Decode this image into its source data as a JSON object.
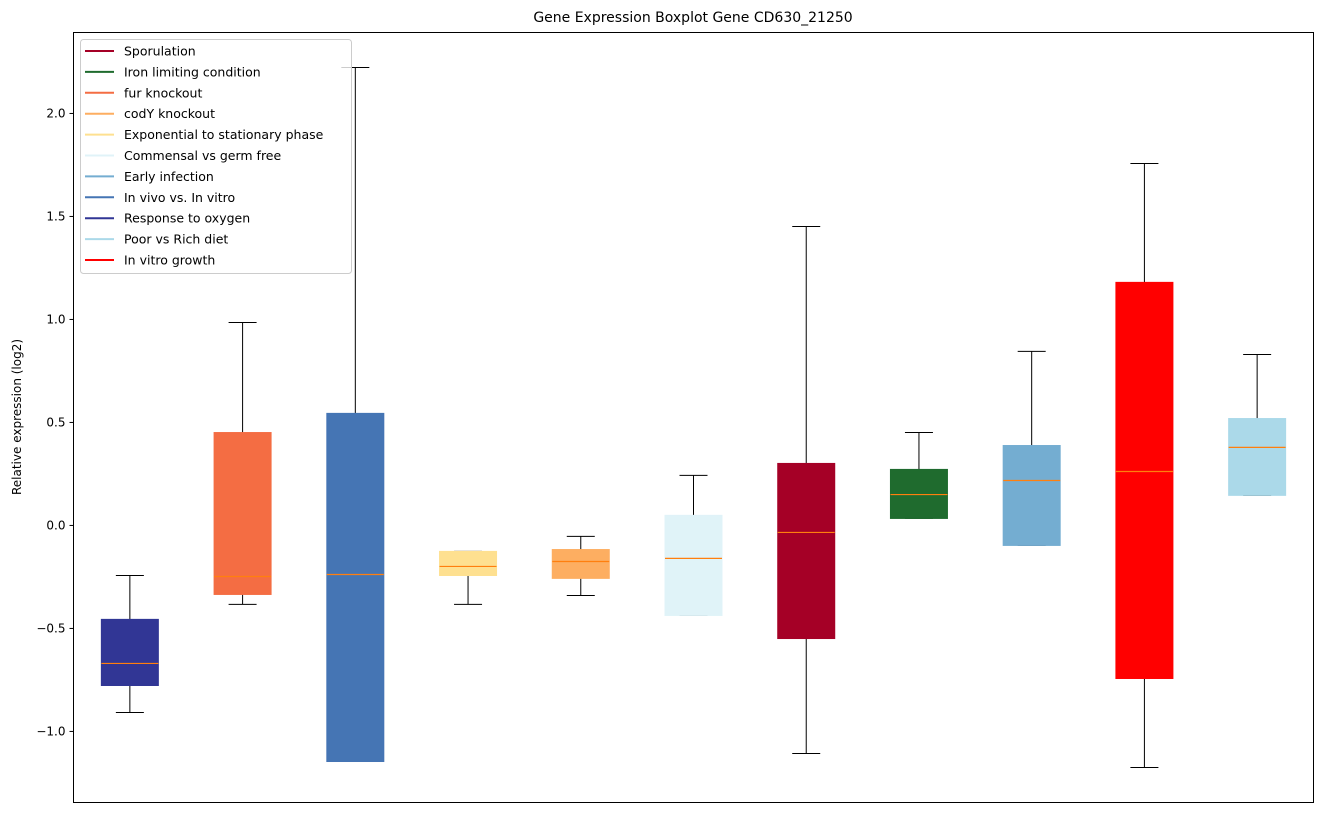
{
  "chart_data": {
    "type": "boxplot",
    "title": "Gene Expression Boxplot Gene CD630_21250",
    "xlabel": "",
    "ylabel": "Relative expression (log2)",
    "ylim": [
      -1.345,
      2.393
    ],
    "yticks": [
      -1.0,
      -0.5,
      0.0,
      0.5,
      1.0,
      1.5,
      2.0
    ],
    "ytick_labels": [
      "−1.0",
      "−0.5",
      "0.0",
      "0.5",
      "1.0",
      "1.5",
      "2.0"
    ],
    "grid": false,
    "legend_position": "top-left",
    "median_color": "#ff7f0e",
    "legend": [
      {
        "label": "Sporulation",
        "color": "#a50026"
      },
      {
        "label": "Iron limiting condition",
        "color": "#1f6b2e"
      },
      {
        "label": "fur knockout",
        "color": "#f46d43"
      },
      {
        "label": "codY knockout",
        "color": "#fdae61"
      },
      {
        "label": "Exponential to stationary phase",
        "color": "#fee090"
      },
      {
        "label": "Commensal vs germ free",
        "color": "#e0f3f8"
      },
      {
        "label": "Early infection",
        "color": "#74add1"
      },
      {
        "label": "In vivo vs. In vitro",
        "color": "#4575b4"
      },
      {
        "label": "Response to oxygen",
        "color": "#313695"
      },
      {
        "label": "Poor vs Rich diet",
        "color": "#abd9e9"
      },
      {
        "label": "In vitro growth",
        "color": "#ff0000"
      }
    ],
    "boxes": [
      {
        "group": "Response to oxygen",
        "color": "#313695",
        "whislo": -0.908,
        "q1": -0.777,
        "median": -0.67,
        "q3": -0.456,
        "whishi": -0.243
      },
      {
        "group": "fur knockout",
        "color": "#f46d43",
        "whislo": -0.383,
        "q1": -0.335,
        "median": -0.248,
        "q3": 0.451,
        "whishi": 0.985
      },
      {
        "group": "In vivo vs. In vitro",
        "color": "#4575b4",
        "whislo": -1.146,
        "q1": -1.146,
        "median": -0.238,
        "q3": 0.544,
        "whishi": 2.223
      },
      {
        "group": "Exponential to stationary phase",
        "color": "#fee090",
        "whislo": -0.383,
        "q1": -0.243,
        "median": -0.199,
        "q3": -0.126,
        "whishi": -0.126
      },
      {
        "group": "codY knockout",
        "color": "#fdae61",
        "whislo": -0.34,
        "q1": -0.257,
        "median": -0.175,
        "q3": -0.117,
        "whishi": -0.053
      },
      {
        "group": "Commensal vs germ free",
        "color": "#e0f3f8",
        "whislo": -0.437,
        "q1": -0.437,
        "median": -0.16,
        "q3": 0.049,
        "whishi": 0.243
      },
      {
        "group": "Sporulation",
        "color": "#a50026",
        "whislo": -1.107,
        "q1": -0.549,
        "median": -0.034,
        "q3": 0.301,
        "whishi": 1.451
      },
      {
        "group": "Iron limiting condition",
        "color": "#1f6b2e",
        "whislo": 0.034,
        "q1": 0.034,
        "median": 0.15,
        "q3": 0.272,
        "whishi": 0.451
      },
      {
        "group": "Early infection",
        "color": "#74add1",
        "whislo": -0.097,
        "q1": -0.097,
        "median": 0.218,
        "q3": 0.388,
        "whishi": 0.845
      },
      {
        "group": "In vitro growth",
        "color": "#ff0000",
        "whislo": -1.175,
        "q1": -0.743,
        "median": 0.262,
        "q3": 1.18,
        "whishi": 1.757
      },
      {
        "group": "Poor vs Rich diet",
        "color": "#abd9e9",
        "whislo": 0.146,
        "q1": 0.146,
        "median": 0.379,
        "q3": 0.519,
        "whishi": 0.83
      }
    ]
  }
}
